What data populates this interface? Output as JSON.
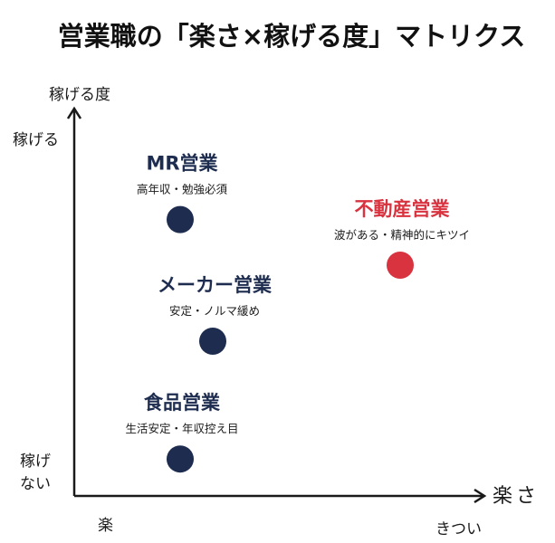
{
  "chart_data": {
    "type": "scatter",
    "title": "営業職の「楽さ×稼げる度」マトリクス",
    "x_axis": {
      "label": "楽さ",
      "low_label": "楽",
      "high_label": "きつい"
    },
    "y_axis": {
      "label": "稼げる度",
      "high_label": "稼げる",
      "low_label_lines": [
        "稼げ",
        "ない"
      ]
    },
    "grid": false,
    "xlim": [
      0,
      10
    ],
    "ylim": [
      0,
      10
    ],
    "points": [
      {
        "name": "MR営業",
        "description": "高年収・勉強必須",
        "x": 2.6,
        "y": 7.2,
        "color": "#1e2d4f"
      },
      {
        "name": "不動産営業",
        "description": "波がある・精神的にキツイ",
        "x": 8.0,
        "y": 6.0,
        "color": "#d8333f"
      },
      {
        "name": "メーカー営業",
        "description": "安定・ノルマ緩め",
        "x": 3.4,
        "y": 4.0,
        "color": "#1e2d4f"
      },
      {
        "name": "食品営業",
        "description": "生活安定・年収控え目",
        "x": 2.6,
        "y": 0.9,
        "color": "#1e2d4f"
      }
    ]
  },
  "colors": {
    "axis": "#1a1a1a",
    "label_dark": "#1e2d4f",
    "label_red": "#d8333f",
    "text": "#1a1a1a"
  }
}
